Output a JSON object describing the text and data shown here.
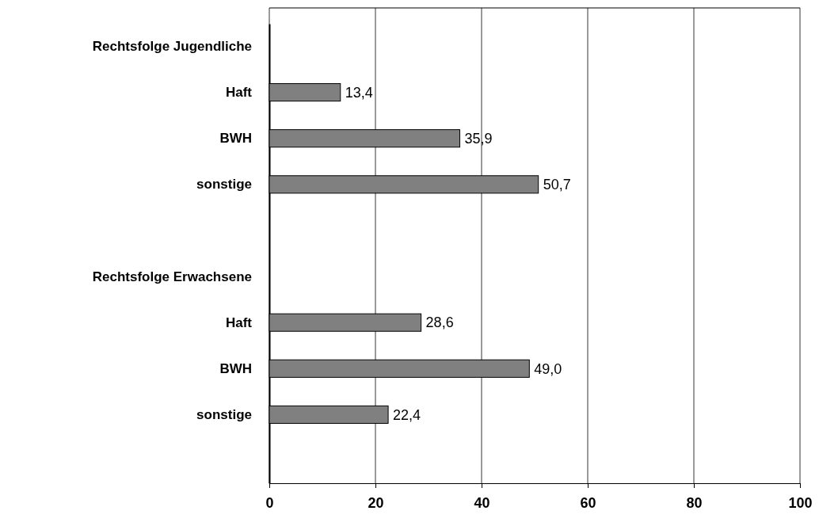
{
  "chart_data": {
    "type": "bar",
    "orientation": "horizontal",
    "categories": [
      "Rechtsfolge Jugendliche",
      "Haft",
      "BWH",
      "sonstige",
      null,
      "Rechtsfolge Erwachsene",
      "Haft",
      "BWH",
      "sonstige",
      null
    ],
    "values": [
      null,
      13.4,
      35.9,
      50.7,
      null,
      null,
      28.6,
      49.0,
      22.4,
      null
    ],
    "value_labels": [
      null,
      "13,4",
      "35,9",
      "50,7",
      null,
      null,
      "28,6",
      "49,0",
      "22,4",
      null
    ],
    "color": "#808080",
    "xlim": [
      0,
      100
    ],
    "xticks": [
      0,
      20,
      40,
      60,
      80,
      100
    ],
    "grid": "x"
  }
}
